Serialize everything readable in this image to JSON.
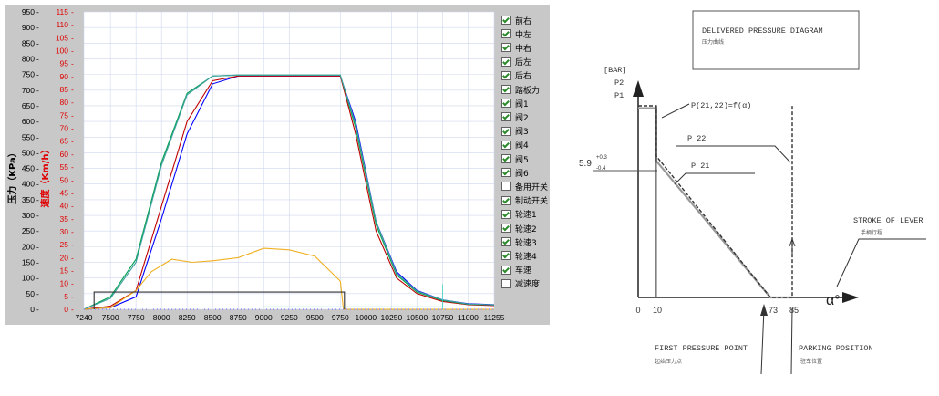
{
  "chart_data": [
    {
      "type": "line",
      "title": "",
      "ylabel_left": "压力（KPa）",
      "ylabel_right": "速度（Km/h）",
      "xlabel": "",
      "xlim": [
        7240,
        11255
      ],
      "x_ticks": [
        "7240",
        "7500",
        "7750",
        "8000",
        "8250",
        "8500",
        "8750",
        "9000",
        "9250",
        "9500",
        "9750",
        "10000",
        "10250",
        "10500",
        "10750",
        "11000",
        "11255"
      ],
      "y_left_ticks": [
        "950",
        "900",
        "850",
        "800",
        "750",
        "700",
        "650",
        "600",
        "550",
        "500",
        "450",
        "400",
        "350",
        "300",
        "250",
        "200",
        "150",
        "100",
        "50",
        "0"
      ],
      "y_left_lim": [
        0,
        950
      ],
      "y_right_ticks": [
        "115",
        "110",
        "105",
        "100",
        "95",
        "90",
        "85",
        "80",
        "75",
        "70",
        "65",
        "60",
        "55",
        "50",
        "45",
        "40",
        "35",
        "30",
        "25",
        "20",
        "15",
        "10",
        "5",
        "0"
      ],
      "y_right_lim": [
        0,
        115
      ],
      "series": [
        {
          "name": "前右",
          "color": "#0000ff",
          "x": [
            7240,
            7500,
            7750,
            8000,
            8250,
            8500,
            8750,
            9000,
            9250,
            9500,
            9750,
            9900,
            10100,
            10300,
            10500,
            10750,
            11000,
            11255
          ],
          "y": [
            0,
            5,
            40,
            290,
            560,
            720,
            745,
            745,
            745,
            745,
            745,
            600,
            280,
            120,
            60,
            30,
            18,
            15
          ]
        },
        {
          "name": "中左",
          "color": "#c00000",
          "x": [
            7240,
            7500,
            7750,
            8000,
            8250,
            8500,
            8750,
            9000,
            9250,
            9500,
            9750,
            9900,
            10100,
            10300,
            10500,
            10750,
            11000,
            11255
          ],
          "y": [
            0,
            10,
            60,
            330,
            600,
            730,
            745,
            745,
            745,
            745,
            745,
            560,
            250,
            100,
            50,
            25,
            15,
            12
          ]
        },
        {
          "name": "中右",
          "color": "#00a050",
          "x": [
            7240,
            7500,
            7750,
            8000,
            8250,
            8500,
            8750,
            9000,
            9250,
            9500,
            9750,
            9900,
            10100,
            10300,
            10500,
            10750,
            11000,
            11255
          ],
          "y": [
            0,
            40,
            160,
            470,
            690,
            745,
            748,
            748,
            748,
            748,
            748,
            580,
            270,
            110,
            55,
            28,
            16,
            14
          ]
        },
        {
          "name": "车速",
          "color": "#40a0a0",
          "x": [
            7240,
            7500,
            7750,
            8000,
            8250,
            8500,
            8750,
            9000,
            9250,
            9500,
            9750,
            9900,
            10100,
            10300,
            10500,
            10750,
            11000,
            11255
          ],
          "y": [
            0,
            35,
            150,
            460,
            685,
            745,
            748,
            748,
            748,
            748,
            748,
            590,
            280,
            115,
            58,
            30,
            17,
            14
          ]
        },
        {
          "name": "踏板力",
          "color": "#f0b020",
          "x": [
            7240,
            7500,
            7750,
            7900,
            8100,
            8300,
            8500,
            8750,
            9000,
            9250,
            9500,
            9750,
            9780,
            11255
          ],
          "y": [
            0,
            5,
            60,
            120,
            160,
            150,
            155,
            165,
            195,
            190,
            170,
            90,
            0,
            0
          ]
        },
        {
          "name": "轮速1",
          "color": "#303030",
          "x": [
            7340,
            7340,
            9790,
            9790
          ],
          "y": [
            0,
            55,
            55,
            0
          ]
        }
      ]
    },
    {
      "type": "line",
      "title": "DELIVERED PRESSURE DIAGRAM",
      "subtitle": "压力曲线",
      "ylabel": "[BAR]",
      "y_labels": [
        "P2",
        "P1"
      ],
      "xlabel": "α°",
      "x_ticks": [
        "0",
        "10",
        "73",
        "85"
      ],
      "y_value_label": "5.9",
      "y_value_sup": "+0.3",
      "y_value_sub": "-0.4",
      "annotations": [
        "P(21,22)=f(α)",
        "P 22",
        "P 21",
        "STROKE OF LEVER",
        "手柄行程",
        "FIRST PRESSURE POINT",
        "起始压力点",
        "PARKING POSITION",
        "驻车位置"
      ],
      "series": [
        {
          "name": "P 22",
          "x": [
            0,
            10,
            10,
            73,
            85,
            85
          ],
          "y": [
            8.0,
            8.0,
            5.9,
            0,
            0,
            8.0
          ]
        },
        {
          "name": "P 21",
          "x": [
            0,
            10,
            10,
            73,
            85
          ],
          "y": [
            7.9,
            7.9,
            5.7,
            0,
            0
          ]
        }
      ]
    }
  ],
  "legend": [
    {
      "label": "前右",
      "checked": true
    },
    {
      "label": "中左",
      "checked": true
    },
    {
      "label": "中右",
      "checked": true
    },
    {
      "label": "后左",
      "checked": true
    },
    {
      "label": "后右",
      "checked": true
    },
    {
      "label": "踏板力",
      "checked": true
    },
    {
      "label": "阀1",
      "checked": true
    },
    {
      "label": "阀2",
      "checked": true
    },
    {
      "label": "阀3",
      "checked": true
    },
    {
      "label": "阀4",
      "checked": true
    },
    {
      "label": "阀5",
      "checked": true
    },
    {
      "label": "阀6",
      "checked": true
    },
    {
      "label": "备用开关",
      "checked": false
    },
    {
      "label": "制动开关",
      "checked": true
    },
    {
      "label": "轮速1",
      "checked": true
    },
    {
      "label": "轮速2",
      "checked": true
    },
    {
      "label": "轮速3",
      "checked": true
    },
    {
      "label": "轮速4",
      "checked": true
    },
    {
      "label": "车速",
      "checked": true
    },
    {
      "label": "减速度",
      "checked": false
    }
  ]
}
